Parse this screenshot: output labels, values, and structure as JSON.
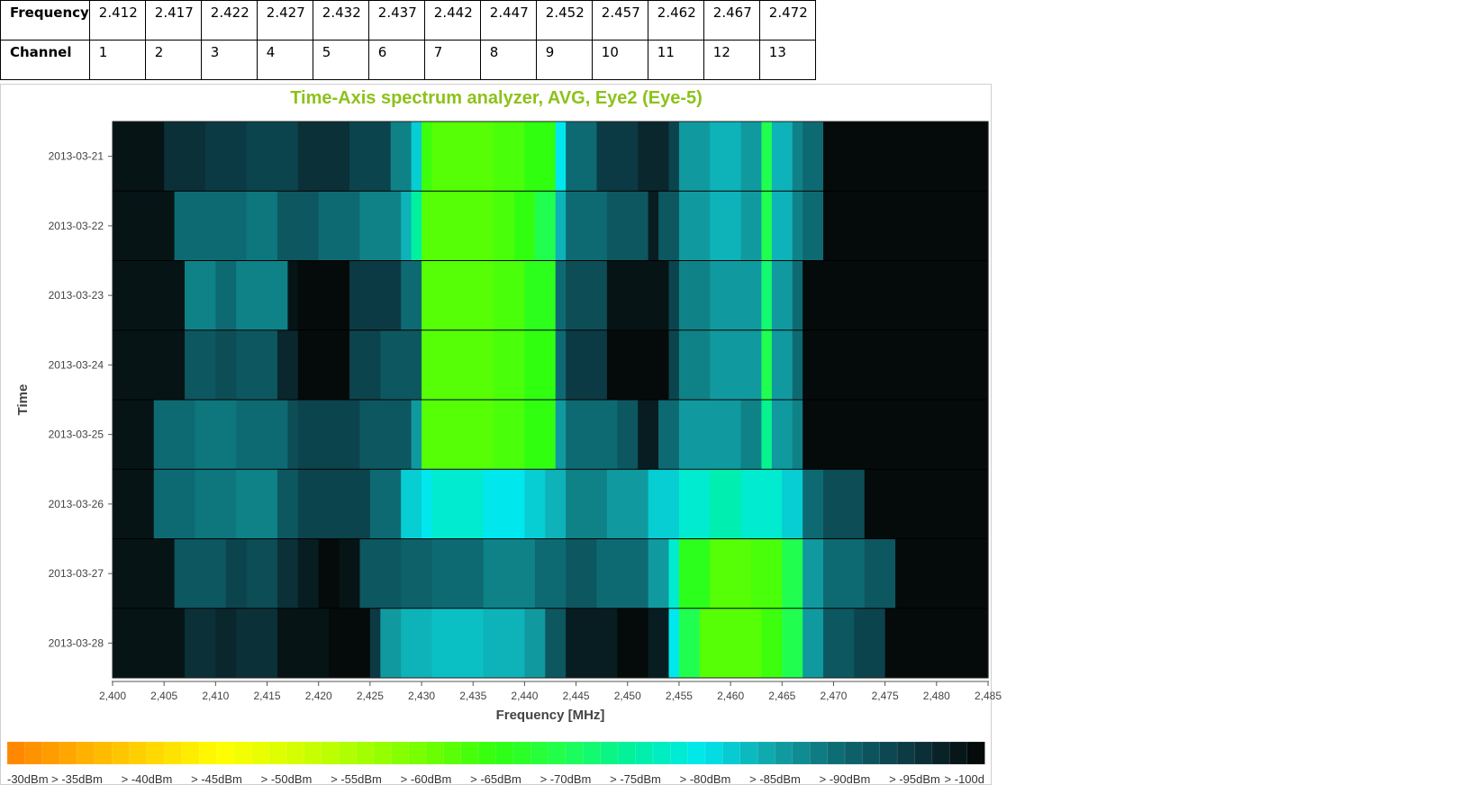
{
  "channel_table": {
    "row_labels": [
      "Frequency",
      "Channel"
    ],
    "frequencies": [
      "2.412",
      "2.417",
      "2.422",
      "2.427",
      "2.432",
      "2.437",
      "2.442",
      "2.447",
      "2.452",
      "2.457",
      "2.462",
      "2.467",
      "2.472"
    ],
    "channels": [
      "1",
      "2",
      "3",
      "4",
      "5",
      "6",
      "7",
      "8",
      "9",
      "10",
      "11",
      "12",
      "13"
    ]
  },
  "chart_data": {
    "type": "heatmap",
    "title": "Time-Axis spectrum analyzer, AVG, Eye2 (Eye-5)",
    "xlabel": "Frequency [MHz]",
    "ylabel": "Time",
    "xlim": [
      2400,
      2485
    ],
    "x_ticks": [
      "2,400",
      "2,405",
      "2,410",
      "2,415",
      "2,420",
      "2,425",
      "2,430",
      "2,435",
      "2,440",
      "2,445",
      "2,450",
      "2,455",
      "2,460",
      "2,465",
      "2,470",
      "2,475",
      "2,480",
      "2,485"
    ],
    "y_categories": [
      "2013-03-21",
      "2013-03-22",
      "2013-03-23",
      "2013-03-24",
      "2013-03-25",
      "2013-03-26",
      "2013-03-27",
      "2013-03-28"
    ],
    "levels_dbm": [
      -100,
      -95,
      -90,
      -85,
      -80,
      -75,
      -70,
      -65,
      -60,
      -55,
      -50,
      -45,
      -40,
      -35,
      -30
    ],
    "level_colors": [
      "#050a0a",
      "#0c3a44",
      "#0e6a72",
      "#10a6aa",
      "#00e8ee",
      "#00f0a0",
      "#20ff50",
      "#30ff10",
      "#70ff00",
      "#a8ff00",
      "#d8ff00",
      "#ffff00",
      "#ffd800",
      "#ffb000",
      "#ff8800"
    ],
    "rows": [
      {
        "time": "2013-03-21",
        "segments": [
          [
            2400,
            2405,
            -99
          ],
          [
            2405,
            2409,
            -96
          ],
          [
            2409,
            2413,
            -95
          ],
          [
            2413,
            2418,
            -94
          ],
          [
            2418,
            2423,
            -96
          ],
          [
            2423,
            2427,
            -94
          ],
          [
            2427,
            2429,
            -88
          ],
          [
            2429,
            2430,
            -82
          ],
          [
            2430,
            2431,
            -64
          ],
          [
            2431,
            2437,
            -62
          ],
          [
            2437,
            2440,
            -63
          ],
          [
            2440,
            2443,
            -65
          ],
          [
            2443,
            2444,
            -80
          ],
          [
            2444,
            2447,
            -90
          ],
          [
            2447,
            2451,
            -95
          ],
          [
            2451,
            2454,
            -97
          ],
          [
            2454,
            2455,
            -94
          ],
          [
            2455,
            2458,
            -86
          ],
          [
            2458,
            2461,
            -84
          ],
          [
            2461,
            2463,
            -86
          ],
          [
            2463,
            2464,
            -70
          ],
          [
            2464,
            2466,
            -84
          ],
          [
            2466,
            2467,
            -88
          ],
          [
            2467,
            2469,
            -90
          ],
          [
            2469,
            2485,
            -100
          ]
        ]
      },
      {
        "time": "2013-03-22",
        "segments": [
          [
            2400,
            2406,
            -99
          ],
          [
            2406,
            2413,
            -90
          ],
          [
            2413,
            2416,
            -89
          ],
          [
            2416,
            2420,
            -92
          ],
          [
            2420,
            2424,
            -90
          ],
          [
            2424,
            2428,
            -88
          ],
          [
            2428,
            2429,
            -84
          ],
          [
            2429,
            2430,
            -75
          ],
          [
            2430,
            2437,
            -62
          ],
          [
            2437,
            2439,
            -63
          ],
          [
            2439,
            2441,
            -65
          ],
          [
            2441,
            2443,
            -70
          ],
          [
            2443,
            2444,
            -84
          ],
          [
            2444,
            2448,
            -90
          ],
          [
            2448,
            2452,
            -92
          ],
          [
            2452,
            2453,
            -98
          ],
          [
            2453,
            2455,
            -92
          ],
          [
            2455,
            2458,
            -86
          ],
          [
            2458,
            2461,
            -84
          ],
          [
            2461,
            2463,
            -86
          ],
          [
            2463,
            2464,
            -70
          ],
          [
            2464,
            2466,
            -84
          ],
          [
            2466,
            2467,
            -88
          ],
          [
            2467,
            2469,
            -90
          ],
          [
            2469,
            2485,
            -100
          ]
        ]
      },
      {
        "time": "2013-03-23",
        "segments": [
          [
            2400,
            2407,
            -99
          ],
          [
            2407,
            2410,
            -88
          ],
          [
            2410,
            2412,
            -90
          ],
          [
            2412,
            2417,
            -88
          ],
          [
            2417,
            2418,
            -99
          ],
          [
            2418,
            2423,
            -100
          ],
          [
            2423,
            2428,
            -95
          ],
          [
            2428,
            2430,
            -90
          ],
          [
            2430,
            2437,
            -62
          ],
          [
            2437,
            2440,
            -63
          ],
          [
            2440,
            2443,
            -66
          ],
          [
            2443,
            2444,
            -90
          ],
          [
            2444,
            2448,
            -93
          ],
          [
            2448,
            2454,
            -99
          ],
          [
            2454,
            2455,
            -94
          ],
          [
            2455,
            2458,
            -88
          ],
          [
            2458,
            2463,
            -86
          ],
          [
            2463,
            2464,
            -72
          ],
          [
            2464,
            2466,
            -86
          ],
          [
            2466,
            2467,
            -90
          ],
          [
            2467,
            2485,
            -100
          ]
        ]
      },
      {
        "time": "2013-03-24",
        "segments": [
          [
            2400,
            2407,
            -99
          ],
          [
            2407,
            2410,
            -92
          ],
          [
            2410,
            2412,
            -93
          ],
          [
            2412,
            2416,
            -92
          ],
          [
            2416,
            2418,
            -97
          ],
          [
            2418,
            2423,
            -100
          ],
          [
            2423,
            2426,
            -94
          ],
          [
            2426,
            2430,
            -92
          ],
          [
            2430,
            2437,
            -62
          ],
          [
            2437,
            2440,
            -63
          ],
          [
            2440,
            2443,
            -65
          ],
          [
            2443,
            2444,
            -90
          ],
          [
            2444,
            2448,
            -95
          ],
          [
            2448,
            2454,
            -100
          ],
          [
            2454,
            2455,
            -94
          ],
          [
            2455,
            2458,
            -88
          ],
          [
            2458,
            2463,
            -86
          ],
          [
            2463,
            2464,
            -70
          ],
          [
            2464,
            2466,
            -86
          ],
          [
            2466,
            2467,
            -90
          ],
          [
            2467,
            2485,
            -100
          ]
        ]
      },
      {
        "time": "2013-03-25",
        "segments": [
          [
            2400,
            2404,
            -99
          ],
          [
            2404,
            2408,
            -90
          ],
          [
            2408,
            2412,
            -89
          ],
          [
            2412,
            2417,
            -90
          ],
          [
            2417,
            2418,
            -93
          ],
          [
            2418,
            2424,
            -94
          ],
          [
            2424,
            2429,
            -92
          ],
          [
            2429,
            2430,
            -86
          ],
          [
            2430,
            2437,
            -62
          ],
          [
            2437,
            2440,
            -63
          ],
          [
            2440,
            2443,
            -65
          ],
          [
            2443,
            2444,
            -86
          ],
          [
            2444,
            2449,
            -90
          ],
          [
            2449,
            2451,
            -92
          ],
          [
            2451,
            2453,
            -98
          ],
          [
            2453,
            2455,
            -90
          ],
          [
            2455,
            2458,
            -86
          ],
          [
            2458,
            2461,
            -86
          ],
          [
            2461,
            2463,
            -88
          ],
          [
            2463,
            2464,
            -74
          ],
          [
            2464,
            2466,
            -86
          ],
          [
            2466,
            2467,
            -88
          ],
          [
            2467,
            2485,
            -100
          ]
        ]
      },
      {
        "time": "2013-03-26",
        "segments": [
          [
            2400,
            2404,
            -99
          ],
          [
            2404,
            2408,
            -90
          ],
          [
            2408,
            2412,
            -89
          ],
          [
            2412,
            2416,
            -88
          ],
          [
            2416,
            2418,
            -92
          ],
          [
            2418,
            2425,
            -94
          ],
          [
            2425,
            2428,
            -90
          ],
          [
            2428,
            2430,
            -82
          ],
          [
            2430,
            2431,
            -80
          ],
          [
            2431,
            2436,
            -78
          ],
          [
            2436,
            2440,
            -80
          ],
          [
            2440,
            2442,
            -82
          ],
          [
            2442,
            2444,
            -84
          ],
          [
            2444,
            2448,
            -88
          ],
          [
            2448,
            2452,
            -86
          ],
          [
            2452,
            2455,
            -82
          ],
          [
            2455,
            2458,
            -78
          ],
          [
            2458,
            2461,
            -76
          ],
          [
            2461,
            2465,
            -78
          ],
          [
            2465,
            2467,
            -82
          ],
          [
            2467,
            2469,
            -90
          ],
          [
            2469,
            2473,
            -93
          ],
          [
            2473,
            2485,
            -100
          ]
        ]
      },
      {
        "time": "2013-03-27",
        "segments": [
          [
            2400,
            2406,
            -99
          ],
          [
            2406,
            2411,
            -92
          ],
          [
            2411,
            2413,
            -94
          ],
          [
            2413,
            2416,
            -93
          ],
          [
            2416,
            2418,
            -96
          ],
          [
            2418,
            2420,
            -98
          ],
          [
            2420,
            2422,
            -100
          ],
          [
            2422,
            2424,
            -99
          ],
          [
            2424,
            2428,
            -92
          ],
          [
            2428,
            2431,
            -91
          ],
          [
            2431,
            2436,
            -90
          ],
          [
            2436,
            2441,
            -88
          ],
          [
            2441,
            2444,
            -90
          ],
          [
            2444,
            2447,
            -92
          ],
          [
            2447,
            2452,
            -90
          ],
          [
            2452,
            2454,
            -86
          ],
          [
            2454,
            2455,
            -78
          ],
          [
            2455,
            2458,
            -66
          ],
          [
            2458,
            2462,
            -62
          ],
          [
            2462,
            2465,
            -63
          ],
          [
            2465,
            2467,
            -70
          ],
          [
            2467,
            2469,
            -86
          ],
          [
            2469,
            2473,
            -90
          ],
          [
            2473,
            2476,
            -92
          ],
          [
            2476,
            2485,
            -100
          ]
        ]
      },
      {
        "time": "2013-03-28",
        "segments": [
          [
            2400,
            2407,
            -99
          ],
          [
            2407,
            2410,
            -96
          ],
          [
            2410,
            2412,
            -97
          ],
          [
            2412,
            2416,
            -96
          ],
          [
            2416,
            2421,
            -99
          ],
          [
            2421,
            2425,
            -100
          ],
          [
            2425,
            2426,
            -95
          ],
          [
            2426,
            2428,
            -86
          ],
          [
            2428,
            2431,
            -84
          ],
          [
            2431,
            2436,
            -83
          ],
          [
            2436,
            2440,
            -84
          ],
          [
            2440,
            2442,
            -86
          ],
          [
            2442,
            2444,
            -92
          ],
          [
            2444,
            2449,
            -98
          ],
          [
            2449,
            2452,
            -100
          ],
          [
            2452,
            2454,
            -98
          ],
          [
            2454,
            2455,
            -80
          ],
          [
            2455,
            2457,
            -70
          ],
          [
            2457,
            2463,
            -62
          ],
          [
            2463,
            2465,
            -64
          ],
          [
            2465,
            2467,
            -70
          ],
          [
            2467,
            2469,
            -86
          ],
          [
            2469,
            2472,
            -92
          ],
          [
            2472,
            2475,
            -94
          ],
          [
            2475,
            2485,
            -100
          ]
        ]
      }
    ],
    "legend": {
      "labels": [
        "-30dBm",
        "> -35dBm",
        "> -40dBm",
        "> -45dBm",
        "> -50dBm",
        "> -55dBm",
        "> -60dBm",
        "> -65dBm",
        "> -70dBm",
        "> -75dBm",
        "> -80dBm",
        "> -85dBm",
        "> -90dBm",
        "> -95dBm",
        "> -100d"
      ],
      "position": "bottom"
    }
  }
}
